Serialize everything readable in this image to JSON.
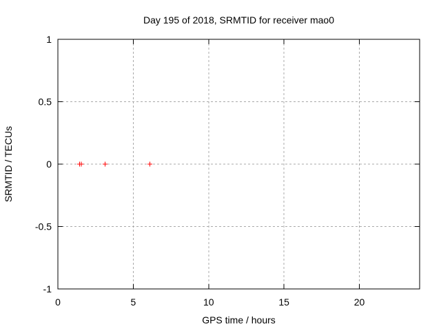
{
  "chart_data": {
    "type": "scatter",
    "title": "Day 195 of 2018, SRMTID for receiver mao0",
    "xlabel": "GPS time / hours",
    "ylabel": "SRMTID / TECUs",
    "xlim": [
      0,
      24
    ],
    "ylim": [
      -1,
      1
    ],
    "xticks": [
      0,
      5,
      10,
      15,
      20
    ],
    "xtick_labels": [
      "0",
      "5",
      "10",
      "15",
      "20"
    ],
    "yticks": [
      1,
      0.5,
      0,
      -0.5,
      -1
    ],
    "ytick_labels": [
      "1",
      "0.5",
      "0",
      "-0.5",
      "-1"
    ],
    "grid": true,
    "grid_style": "dashed",
    "legend_position": "none",
    "colors": {
      "marker": "#ff0000",
      "grid": "#a8a8a8",
      "axis": "#000000",
      "text": "#000000",
      "background": "#ffffff"
    },
    "series": [
      {
        "name": "SRMTID",
        "marker": "plus",
        "color": "#ff0000",
        "points": [
          [
            1.44,
            0
          ],
          [
            1.55,
            0
          ],
          [
            3.13,
            0
          ],
          [
            6.11,
            0
          ]
        ]
      }
    ]
  }
}
